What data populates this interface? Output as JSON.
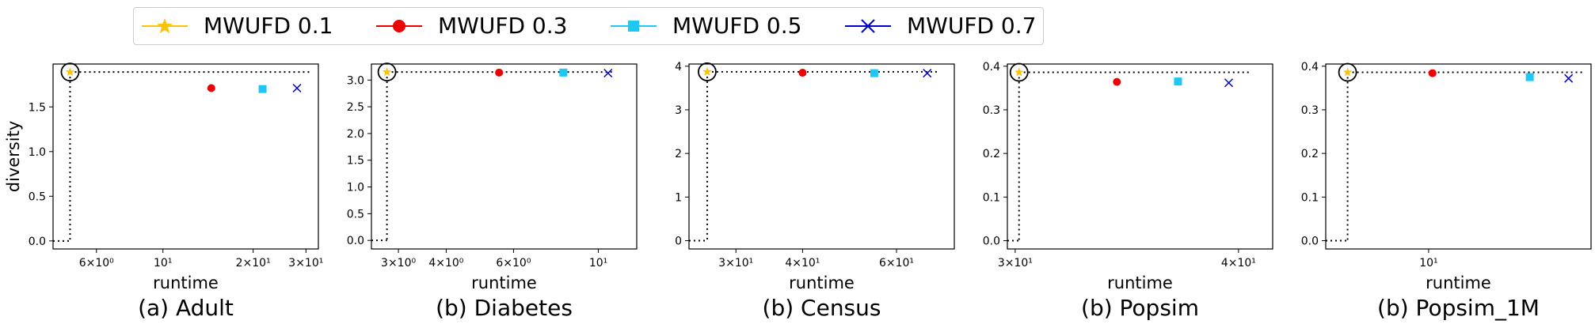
{
  "legend": [
    {
      "label": "MWUFD 0.1",
      "color": "#FFC20A",
      "marker": "star"
    },
    {
      "label": "MWUFD 0.3",
      "color": "#EE0000",
      "marker": "circle"
    },
    {
      "label": "MWUFD 0.5",
      "color": "#1EC8F5",
      "marker": "square"
    },
    {
      "label": "MWUFD 0.7",
      "color": "#0000CC",
      "marker": "x"
    }
  ],
  "chart_data": [
    {
      "type": "scatter",
      "title": "(a) Adult",
      "xlabel": "runtime",
      "ylabel": "diversity",
      "xscale": "log",
      "xlim": [
        4.3,
        33
      ],
      "ylim": [
        -0.09,
        1.98
      ],
      "xticks": [
        {
          "v": 6,
          "label": "6×10⁰"
        },
        {
          "v": 10,
          "label": "10¹"
        },
        {
          "v": 20,
          "label": "2×10¹"
        },
        {
          "v": 30,
          "label": "3×10¹"
        }
      ],
      "yticks": [
        {
          "v": 0.0,
          "label": "0.0"
        },
        {
          "v": 0.5,
          "label": "0.5"
        },
        {
          "v": 1.0,
          "label": "1.0"
        },
        {
          "v": 1.5,
          "label": "1.5"
        }
      ],
      "series": [
        {
          "name": "MWUFD 0.1",
          "x": 4.9,
          "y": 1.89
        },
        {
          "name": "MWUFD 0.3",
          "x": 14.5,
          "y": 1.71
        },
        {
          "name": "MWUFD 0.5",
          "x": 21.5,
          "y": 1.7
        },
        {
          "name": "MWUFD 0.7",
          "x": 28.0,
          "y": 1.71
        }
      ],
      "ideal": {
        "x": 4.9,
        "y": 1.89
      },
      "guide_xmax": 31.5
    },
    {
      "type": "scatter",
      "title": "(b) Diabetes",
      "xlabel": "runtime",
      "ylabel": "",
      "xscale": "log",
      "xlim": [
        2.55,
        12.6
      ],
      "ylim": [
        -0.16,
        3.3
      ],
      "xticks": [
        {
          "v": 3,
          "label": "3×10⁰"
        },
        {
          "v": 4,
          "label": "4×10⁰"
        },
        {
          "v": 6,
          "label": "6×10⁰"
        },
        {
          "v": 10,
          "label": "10¹"
        }
      ],
      "yticks": [
        {
          "v": 0.0,
          "label": "0.0"
        },
        {
          "v": 0.5,
          "label": "0.5"
        },
        {
          "v": 1.0,
          "label": "1.0"
        },
        {
          "v": 1.5,
          "label": "1.5"
        },
        {
          "v": 2.0,
          "label": "2.0"
        },
        {
          "v": 2.5,
          "label": "2.5"
        },
        {
          "v": 3.0,
          "label": "3.0"
        }
      ],
      "series": [
        {
          "name": "MWUFD 0.1",
          "x": 2.8,
          "y": 3.15
        },
        {
          "name": "MWUFD 0.3",
          "x": 5.5,
          "y": 3.14
        },
        {
          "name": "MWUFD 0.5",
          "x": 8.1,
          "y": 3.14
        },
        {
          "name": "MWUFD 0.7",
          "x": 10.6,
          "y": 3.13
        }
      ],
      "ideal": {
        "x": 2.8,
        "y": 3.15
      },
      "guide_xmax": 11.0
    },
    {
      "type": "scatter",
      "title": "(b) Census",
      "xlabel": "runtime",
      "ylabel": "",
      "xscale": "log",
      "xlim": [
        24.5,
        77
      ],
      "ylim": [
        -0.19,
        4.05
      ],
      "xticks": [
        {
          "v": 30,
          "label": "3×10¹"
        },
        {
          "v": 40,
          "label": "4×10¹"
        },
        {
          "v": 60,
          "label": "6×10¹"
        }
      ],
      "yticks": [
        {
          "v": 0,
          "label": "0"
        },
        {
          "v": 1,
          "label": "1"
        },
        {
          "v": 2,
          "label": "2"
        },
        {
          "v": 3,
          "label": "3"
        },
        {
          "v": 4,
          "label": "4"
        }
      ],
      "series": [
        {
          "name": "MWUFD 0.1",
          "x": 26.5,
          "y": 3.87
        },
        {
          "name": "MWUFD 0.3",
          "x": 40.0,
          "y": 3.85
        },
        {
          "name": "MWUFD 0.5",
          "x": 54.5,
          "y": 3.84
        },
        {
          "name": "MWUFD 0.7",
          "x": 68.5,
          "y": 3.84
        }
      ],
      "ideal": {
        "x": 26.5,
        "y": 3.87
      },
      "guide_xmax": 72.0
    },
    {
      "type": "scatter",
      "title": "(b) Popsim",
      "xlabel": "runtime",
      "ylabel": "",
      "xscale": "log",
      "xlim": [
        29.7,
        41.8
      ],
      "ylim": [
        -0.019,
        0.405
      ],
      "xticks": [
        {
          "v": 30,
          "label": "3×10¹"
        },
        {
          "v": 40,
          "label": "4×10¹"
        }
      ],
      "yticks": [
        {
          "v": 0.0,
          "label": "0.0"
        },
        {
          "v": 0.1,
          "label": "0.1"
        },
        {
          "v": 0.2,
          "label": "0.2"
        },
        {
          "v": 0.3,
          "label": "0.3"
        },
        {
          "v": 0.4,
          "label": "0.4"
        }
      ],
      "series": [
        {
          "name": "MWUFD 0.1",
          "x": 30.15,
          "y": 0.386
        },
        {
          "name": "MWUFD 0.3",
          "x": 34.2,
          "y": 0.364
        },
        {
          "name": "MWUFD 0.5",
          "x": 37.0,
          "y": 0.365
        },
        {
          "name": "MWUFD 0.7",
          "x": 39.5,
          "y": 0.362
        }
      ],
      "ideal": {
        "x": 30.15,
        "y": 0.386
      },
      "guide_xmax": 40.6
    },
    {
      "type": "scatter",
      "title": "(b) Popsim_1M",
      "xlabel": "runtime",
      "ylabel": "",
      "xscale": "log",
      "xlim": [
        5.9,
        23
      ],
      "ylim": [
        -0.019,
        0.405
      ],
      "xticks": [
        {
          "v": 10,
          "label": "10¹"
        }
      ],
      "yticks": [
        {
          "v": 0.0,
          "label": "0.0"
        },
        {
          "v": 0.1,
          "label": "0.1"
        },
        {
          "v": 0.2,
          "label": "0.2"
        },
        {
          "v": 0.3,
          "label": "0.3"
        },
        {
          "v": 0.4,
          "label": "0.4"
        }
      ],
      "series": [
        {
          "name": "MWUFD 0.1",
          "x": 6.6,
          "y": 0.386
        },
        {
          "name": "MWUFD 0.3",
          "x": 10.2,
          "y": 0.384
        },
        {
          "name": "MWUFD 0.5",
          "x": 16.8,
          "y": 0.375
        },
        {
          "name": "MWUFD 0.7",
          "x": 20.5,
          "y": 0.372
        }
      ],
      "ideal": {
        "x": 6.6,
        "y": 0.386
      },
      "guide_xmax": 22.0
    }
  ]
}
